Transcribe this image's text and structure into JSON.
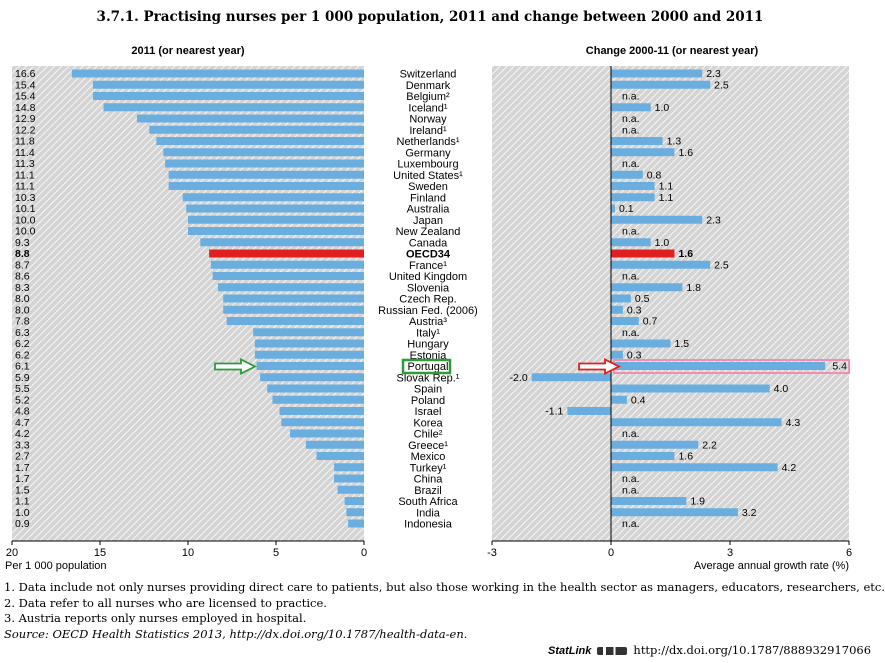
{
  "title": "3.7.1. Practising nurses per 1 000 population, 2011 and change between 2000 and 2011",
  "colors": {
    "bar": "#6aaee0",
    "highlight": "#e02020",
    "panel": "#d6d6d6",
    "hatch": "#ffffff",
    "arrow_left": "#2f9a3c",
    "arrow_right": "#e02020",
    "box_portugal": "#2f9a3c",
    "box_right": "#f08fb0"
  },
  "chart_data": [
    {
      "type": "bar",
      "orientation": "horizontal",
      "title": "2011 (or nearest year)",
      "xlabel": "Per 1 000 population",
      "xlim": [
        20,
        0
      ],
      "x_ticks": [
        "20",
        "15",
        "10",
        "5",
        "0"
      ],
      "value_labels": [
        "16.6",
        "15.4",
        "15.4",
        "14.8",
        "12.9",
        "12.2",
        "11.8",
        "11.4",
        "11.3",
        "11.1",
        "11.1",
        "10.3",
        "10.1",
        "10.0",
        "10.0",
        "9.3",
        "8.8",
        "8.7",
        "8.6",
        "8.3",
        "8.0",
        "8.0",
        "7.8",
        "6.3",
        "6.2",
        "6.2",
        "6.1",
        "5.9",
        "5.5",
        "5.2",
        "4.8",
        "4.7",
        "4.2",
        "3.3",
        "2.7",
        "1.7",
        "1.7",
        "1.5",
        "1.1",
        "1.0",
        "0.9"
      ],
      "values": [
        16.6,
        15.4,
        15.4,
        14.8,
        12.9,
        12.2,
        11.8,
        11.4,
        11.3,
        11.1,
        11.1,
        10.3,
        10.1,
        10.0,
        10.0,
        9.3,
        8.8,
        8.7,
        8.6,
        8.3,
        8.0,
        8.0,
        7.8,
        6.3,
        6.2,
        6.2,
        6.1,
        5.9,
        5.5,
        5.2,
        4.8,
        4.7,
        4.2,
        3.3,
        2.7,
        1.7,
        1.7,
        1.5,
        1.1,
        1.0,
        0.9
      ]
    },
    {
      "type": "bar",
      "orientation": "horizontal",
      "title": "Change 2000-11 (or nearest year)",
      "xlabel": "Average annual growth rate (%)",
      "xlim": [
        -3,
        6
      ],
      "x_ticks": [
        "-3",
        "0",
        "3",
        "6"
      ],
      "value_labels": [
        "2.3",
        "2.5",
        "n.a.",
        "1.0",
        "n.a.",
        "n.a.",
        "1.3",
        "1.6",
        "n.a.",
        "0.8",
        "1.1",
        "1.1",
        "0.1",
        "2.3",
        "n.a.",
        "1.0",
        "1.6",
        "2.5",
        "n.a.",
        "1.8",
        "0.5",
        "0.3",
        "0.7",
        "n.a.",
        "1.5",
        "0.3",
        "5.4",
        "-2.0",
        "4.0",
        "0.4",
        "-1.1",
        "4.3",
        "n.a.",
        "2.2",
        "1.6",
        "4.2",
        "n.a.",
        "n.a.",
        "1.9",
        "3.2",
        "n.a."
      ],
      "values": [
        2.3,
        2.5,
        null,
        1.0,
        null,
        null,
        1.3,
        1.6,
        null,
        0.8,
        1.1,
        1.1,
        0.1,
        2.3,
        null,
        1.0,
        1.6,
        2.5,
        null,
        1.8,
        0.5,
        0.3,
        0.7,
        null,
        1.5,
        0.3,
        5.4,
        -2.0,
        4.0,
        0.4,
        -1.1,
        4.3,
        null,
        2.2,
        1.6,
        4.2,
        null,
        null,
        1.9,
        3.2,
        null
      ]
    }
  ],
  "countries": [
    "Switzerland",
    "Denmark",
    "Belgium²",
    "Iceland¹",
    "Norway",
    "Ireland¹",
    "Netherlands¹",
    "Germany",
    "Luxembourg",
    "United States¹",
    "Sweden",
    "Finland",
    "Australia",
    "Japan",
    "New Zealand",
    "Canada",
    "OECD34",
    "France¹",
    "United Kingdom",
    "Slovenia",
    "Czech Rep.",
    "Russian Fed. (2006)",
    "Austria³",
    "Italy¹",
    "Hungary",
    "Estonia",
    "Portugal",
    "Slovak Rep.¹",
    "Spain",
    "Poland",
    "Israel",
    "Korea",
    "Chile²",
    "Greece¹",
    "Mexico",
    "Turkey¹",
    "China",
    "Brazil",
    "South Africa",
    "India",
    "Indonesia"
  ],
  "highlight_index": 16,
  "marked_index": 26,
  "notes": [
    "1.  Data include not only nurses providing direct care to patients, but also those working in the health sector as managers, educators, researchers, etc.",
    "2.  Data refer to all nurses who are licensed to practice.",
    "3.  Austria reports only nurses employed in hospital."
  ],
  "source": "Source:  OECD Health Statistics 2013, http://dx.doi.org/10.1787/health-data-en.",
  "statlink": {
    "brand": "StatLink",
    "url": "http://dx.doi.org/10.1787/888932917066"
  }
}
